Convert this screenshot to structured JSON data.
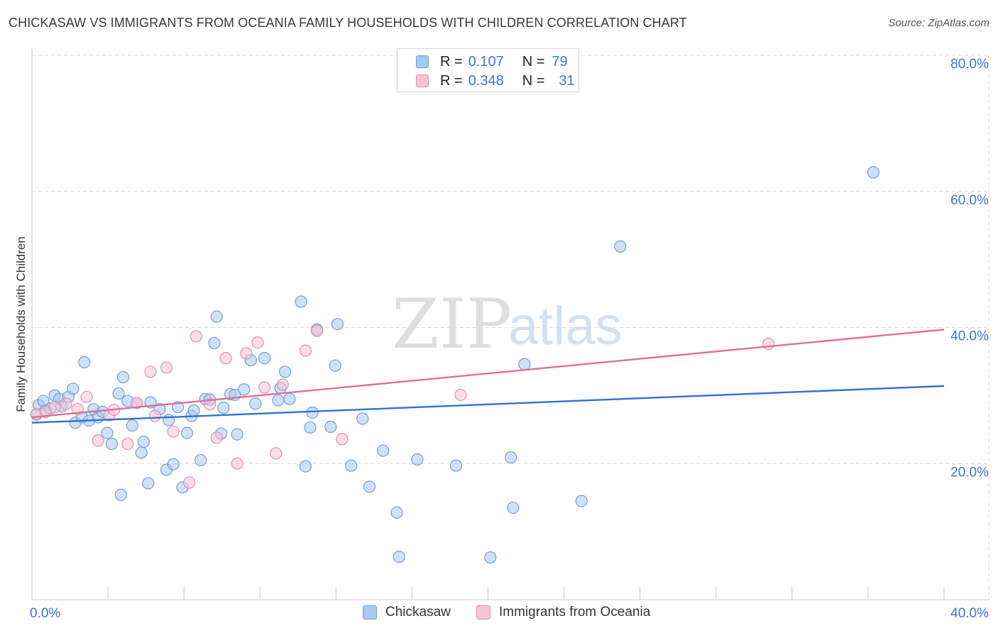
{
  "header": {
    "title": "CHICKASAW VS IMMIGRANTS FROM OCEANIA FAMILY HOUSEHOLDS WITH CHILDREN CORRELATION CHART",
    "source": "Source: ZipAtlas.com"
  },
  "watermark": {
    "zip": "ZIP",
    "atlas": "atlas"
  },
  "legend": {
    "rows": [
      {
        "r_label": "R =",
        "r_value": "0.107",
        "n_label": "N =",
        "n_value": "79",
        "color": "#a9c8f0",
        "border": "#6f9fdd"
      },
      {
        "r_label": "R =",
        "r_value": "0.348",
        "n_label": "N =",
        "n_value": "31",
        "color": "#f6c3d2",
        "border": "#e68fab"
      }
    ]
  },
  "bottom_legend": {
    "items": [
      {
        "label": "Chickasaw",
        "color": "#a9c8f0",
        "border": "#6f9fdd"
      },
      {
        "label": "Immigrants from Oceania",
        "color": "#f6c3d2",
        "border": "#e68fab"
      }
    ]
  },
  "chart_data": {
    "type": "scatter",
    "title": "CHICKASAW VS IMMIGRANTS FROM OCEANIA FAMILY HOUSEHOLDS WITH CHILDREN CORRELATION CHART",
    "xlabel": "",
    "ylabel": "Family Households with Children",
    "xlim": [
      0,
      40
    ],
    "ylim": [
      0,
      80
    ],
    "x_tick_labels": {
      "min": "0.0%",
      "max": "40.0%"
    },
    "y_ticks": [
      {
        "value": 20,
        "label": "20.0%"
      },
      {
        "value": 40,
        "label": "40.0%"
      },
      {
        "value": 60,
        "label": "60.0%"
      },
      {
        "value": 80,
        "label": "80.0%"
      }
    ],
    "grid": true,
    "legend_position": "top-center",
    "series": [
      {
        "name": "Chickasaw",
        "color": "#a9c8f0",
        "stroke": "#6f9fdd",
        "trend": {
          "color": "#2f72cf",
          "x": [
            0,
            40
          ],
          "y": [
            26.0,
            31.4
          ]
        },
        "points": [
          [
            0.2,
            27.2
          ],
          [
            0.3,
            28.6
          ],
          [
            0.5,
            29.2
          ],
          [
            0.6,
            27.8
          ],
          [
            0.8,
            28.1
          ],
          [
            1.0,
            30.0
          ],
          [
            1.2,
            29.5
          ],
          [
            1.3,
            28.4
          ],
          [
            1.6,
            29.8
          ],
          [
            1.8,
            31.0
          ],
          [
            1.9,
            26.0
          ],
          [
            2.2,
            26.8
          ],
          [
            2.3,
            34.9
          ],
          [
            2.5,
            26.3
          ],
          [
            2.7,
            28.0
          ],
          [
            2.9,
            26.8
          ],
          [
            3.1,
            27.6
          ],
          [
            3.3,
            24.5
          ],
          [
            3.5,
            22.9
          ],
          [
            3.8,
            30.3
          ],
          [
            3.9,
            15.4
          ],
          [
            4.0,
            32.7
          ],
          [
            4.2,
            29.2
          ],
          [
            4.4,
            25.6
          ],
          [
            4.6,
            28.9
          ],
          [
            4.8,
            21.6
          ],
          [
            4.9,
            23.2
          ],
          [
            5.1,
            17.1
          ],
          [
            5.2,
            29.0
          ],
          [
            5.6,
            28.0
          ],
          [
            5.9,
            19.1
          ],
          [
            6.0,
            26.4
          ],
          [
            6.2,
            19.9
          ],
          [
            6.4,
            28.3
          ],
          [
            6.6,
            16.5
          ],
          [
            6.8,
            24.5
          ],
          [
            7.0,
            27.0
          ],
          [
            7.1,
            27.8
          ],
          [
            7.4,
            20.5
          ],
          [
            7.6,
            29.5
          ],
          [
            7.8,
            29.4
          ],
          [
            8.0,
            37.7
          ],
          [
            8.1,
            41.6
          ],
          [
            8.3,
            24.4
          ],
          [
            8.4,
            28.2
          ],
          [
            8.7,
            30.2
          ],
          [
            8.9,
            30.1
          ],
          [
            9.0,
            24.3
          ],
          [
            9.3,
            30.9
          ],
          [
            9.6,
            35.2
          ],
          [
            9.8,
            28.8
          ],
          [
            10.2,
            35.5
          ],
          [
            10.8,
            29.3
          ],
          [
            10.9,
            31.1
          ],
          [
            11.1,
            33.5
          ],
          [
            11.3,
            29.5
          ],
          [
            11.8,
            43.8
          ],
          [
            12.0,
            19.6
          ],
          [
            12.2,
            25.3
          ],
          [
            12.3,
            27.5
          ],
          [
            12.5,
            39.7
          ],
          [
            13.1,
            25.4
          ],
          [
            13.3,
            34.4
          ],
          [
            13.4,
            40.5
          ],
          [
            14.0,
            19.7
          ],
          [
            14.5,
            26.6
          ],
          [
            14.8,
            16.6
          ],
          [
            15.4,
            21.9
          ],
          [
            16.0,
            12.8
          ],
          [
            16.1,
            6.3
          ],
          [
            16.9,
            20.6
          ],
          [
            18.6,
            19.7
          ],
          [
            20.1,
            6.2
          ],
          [
            21.0,
            20.9
          ],
          [
            21.1,
            13.5
          ],
          [
            21.6,
            34.6
          ],
          [
            24.1,
            14.5
          ],
          [
            25.8,
            51.9
          ],
          [
            36.9,
            62.8
          ]
        ]
      },
      {
        "name": "Immigrants from Oceania",
        "color": "#f6c3d2",
        "stroke": "#e68fab",
        "trend": {
          "color": "#e06f98",
          "x": [
            0,
            40
          ],
          "y": [
            26.8,
            39.7
          ]
        },
        "points": [
          [
            0.2,
            27.3
          ],
          [
            0.6,
            27.6
          ],
          [
            1.0,
            28.3
          ],
          [
            1.5,
            28.8
          ],
          [
            2.0,
            28.0
          ],
          [
            2.4,
            29.8
          ],
          [
            2.9,
            23.4
          ],
          [
            3.4,
            27.1
          ],
          [
            3.6,
            27.9
          ],
          [
            4.2,
            22.9
          ],
          [
            4.6,
            28.9
          ],
          [
            5.2,
            33.5
          ],
          [
            5.4,
            27.0
          ],
          [
            5.9,
            34.1
          ],
          [
            6.2,
            24.7
          ],
          [
            6.9,
            17.2
          ],
          [
            7.2,
            38.7
          ],
          [
            7.8,
            28.7
          ],
          [
            8.1,
            23.8
          ],
          [
            8.5,
            35.5
          ],
          [
            9.0,
            20.0
          ],
          [
            9.4,
            36.2
          ],
          [
            9.9,
            37.8
          ],
          [
            10.2,
            31.2
          ],
          [
            10.7,
            21.5
          ],
          [
            11.0,
            31.6
          ],
          [
            12.0,
            36.6
          ],
          [
            12.5,
            39.5
          ],
          [
            13.6,
            23.6
          ],
          [
            18.8,
            30.1
          ],
          [
            32.3,
            37.6
          ]
        ]
      }
    ]
  }
}
